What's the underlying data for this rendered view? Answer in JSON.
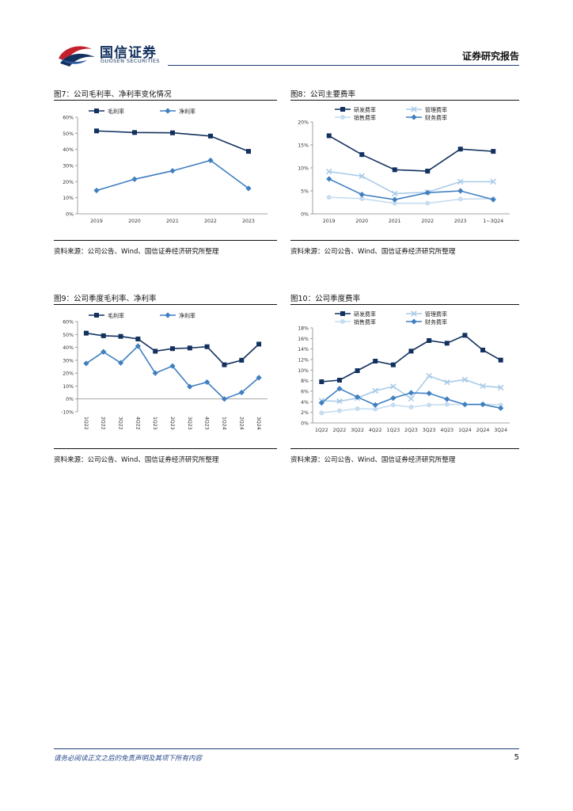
{
  "header": {
    "logo_cn": "国信证券",
    "logo_en": "GUOSEN SECURITIES",
    "report_type": "证券研究报告"
  },
  "figures": [
    {
      "title": "图7：公司毛利率、净利率变化情况",
      "source": "资料来源：公司公告、Wind、国信证券经济研究所整理"
    },
    {
      "title": "图8：公司主要费率",
      "source": "资料来源：公司公告、Wind、国信证券经济研究所整理"
    },
    {
      "title": "图9：公司季度毛利率、净利率",
      "source": "资料来源：公司公告、Wind、国信证券经济研究所整理"
    },
    {
      "title": "图10：公司季度费率",
      "source": "资料来源：公司公告、Wind、国信证券经济研究所整理"
    }
  ],
  "footer": {
    "note": "请务必阅读正文之后的免责声明及其项下所有内容",
    "page": "5"
  },
  "colors": {
    "dark": "#12315e",
    "mid": "#3f7fc0",
    "light": "#a9cbe8",
    "pale": "#c6dcf0"
  },
  "chart_data": [
    {
      "type": "line",
      "title": "图7：公司毛利率、净利率变化情况",
      "categories": [
        "2019",
        "2020",
        "2021",
        "2022",
        "2023"
      ],
      "ylim": [
        0,
        60
      ],
      "ystep": 10,
      "yunit": "%",
      "tick_rotate": false,
      "legend": "top",
      "series": [
        {
          "name": "毛利率",
          "values": [
            51.5,
            50.5,
            50.3,
            48.3,
            38.8
          ],
          "color": "#12315e",
          "marker": "square"
        },
        {
          "name": "净利率",
          "values": [
            14.5,
            21.5,
            26.7,
            33.2,
            15.8
          ],
          "color": "#3f7fc0",
          "marker": "diamond"
        }
      ]
    },
    {
      "type": "line",
      "title": "图8：公司主要费率",
      "categories": [
        "2019",
        "2020",
        "2021",
        "2022",
        "2023",
        "1~3Q24"
      ],
      "ylim": [
        0,
        20
      ],
      "ystep": 5,
      "yunit": "%",
      "tick_rotate": false,
      "legend": "top",
      "series": [
        {
          "name": "研发费率",
          "values": [
            17.0,
            12.9,
            9.6,
            9.3,
            14.1,
            13.6
          ],
          "color": "#12315e",
          "marker": "square"
        },
        {
          "name": "管理费率",
          "values": [
            9.2,
            8.2,
            4.4,
            4.7,
            7.0,
            7.0
          ],
          "color": "#a9cbe8",
          "marker": "x"
        },
        {
          "name": "销售费率",
          "values": [
            3.6,
            3.3,
            2.3,
            2.3,
            3.2,
            3.3
          ],
          "color": "#c6dcf0",
          "marker": "circle"
        },
        {
          "name": "财务费率",
          "values": [
            7.6,
            4.2,
            3.1,
            4.6,
            5.0,
            3.1
          ],
          "color": "#3f7fc0",
          "marker": "diamond"
        }
      ]
    },
    {
      "type": "line",
      "title": "图9：公司季度毛利率、净利率",
      "categories": [
        "1Q22",
        "2Q22",
        "3Q22",
        "4Q22",
        "1Q23",
        "2Q23",
        "3Q23",
        "4Q23",
        "1Q24",
        "2Q24",
        "3Q24"
      ],
      "ylim": [
        -10,
        60
      ],
      "ystep": 10,
      "yunit": "%",
      "tick_rotate": true,
      "legend": "top",
      "series": [
        {
          "name": "毛利率",
          "values": [
            51.0,
            49.0,
            48.5,
            46.5,
            37.0,
            39.0,
            39.5,
            40.5,
            26.5,
            30.0,
            42.5
          ],
          "color": "#12315e",
          "marker": "square"
        },
        {
          "name": "净利率",
          "values": [
            27.5,
            36.5,
            28.0,
            41.0,
            20.0,
            25.5,
            9.5,
            13.0,
            0.0,
            5.0,
            16.5
          ],
          "color": "#3f7fc0",
          "marker": "diamond"
        }
      ]
    },
    {
      "type": "line",
      "title": "图10：公司季度费率",
      "categories": [
        "1Q22",
        "2Q22",
        "3Q22",
        "4Q22",
        "1Q23",
        "2Q23",
        "3Q23",
        "4Q23",
        "1Q24",
        "2Q24",
        "3Q24"
      ],
      "ylim": [
        0,
        18
      ],
      "ystep": 2,
      "yunit": "%",
      "tick_rotate": false,
      "legend": "top",
      "series": [
        {
          "name": "研发费率",
          "values": [
            7.8,
            8.1,
            9.9,
            11.7,
            11.0,
            13.6,
            15.6,
            15.1,
            16.6,
            13.8,
            11.9
          ],
          "color": "#12315e",
          "marker": "square"
        },
        {
          "name": "管理费率",
          "values": [
            4.2,
            4.1,
            4.7,
            6.1,
            6.9,
            4.6,
            8.9,
            7.7,
            8.2,
            7.0,
            6.7
          ],
          "color": "#a9cbe8",
          "marker": "x"
        },
        {
          "name": "销售费率",
          "values": [
            1.9,
            2.3,
            2.7,
            2.6,
            3.4,
            3.0,
            3.4,
            3.5,
            3.5,
            3.6,
            3.4
          ],
          "color": "#c6dcf0",
          "marker": "circle"
        },
        {
          "name": "财务费率",
          "values": [
            3.8,
            6.5,
            4.9,
            3.4,
            4.7,
            5.7,
            5.6,
            4.5,
            3.5,
            3.5,
            2.8
          ],
          "color": "#3f7fc0",
          "marker": "diamond"
        }
      ]
    }
  ]
}
